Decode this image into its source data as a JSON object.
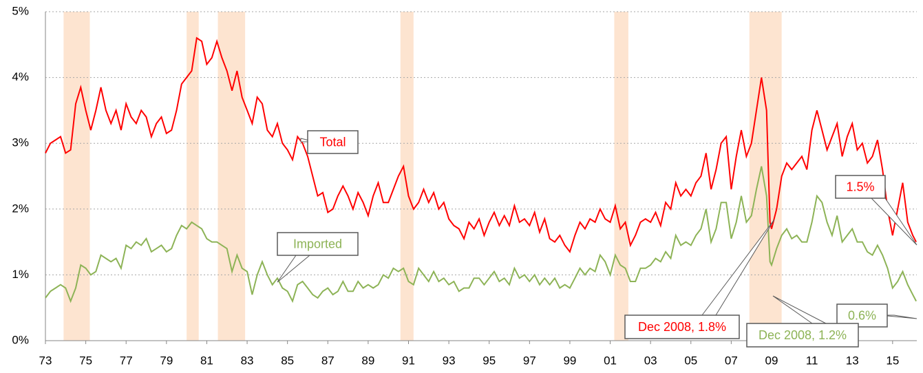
{
  "chart_data": {
    "type": "line",
    "x": [
      1973,
      1973.25,
      1973.5,
      1973.75,
      1974,
      1974.25,
      1974.5,
      1974.75,
      1975,
      1975.25,
      1975.5,
      1975.75,
      1976,
      1976.25,
      1976.5,
      1976.75,
      1977,
      1977.25,
      1977.5,
      1977.75,
      1978,
      1978.25,
      1978.5,
      1978.75,
      1979,
      1979.25,
      1979.5,
      1979.75,
      1980,
      1980.25,
      1980.5,
      1980.75,
      1981,
      1981.25,
      1981.5,
      1981.75,
      1982,
      1982.25,
      1982.5,
      1982.75,
      1983,
      1983.25,
      1983.5,
      1983.75,
      1984,
      1984.25,
      1984.5,
      1984.75,
      1985,
      1985.25,
      1985.5,
      1985.75,
      1986,
      1986.25,
      1986.5,
      1986.75,
      1987,
      1987.25,
      1987.5,
      1987.75,
      1988,
      1988.25,
      1988.5,
      1988.75,
      1989,
      1989.25,
      1989.5,
      1989.75,
      1990,
      1990.25,
      1990.5,
      1990.75,
      1991,
      1991.25,
      1991.5,
      1991.75,
      1992,
      1992.25,
      1992.5,
      1992.75,
      1993,
      1993.25,
      1993.5,
      1993.75,
      1994,
      1994.25,
      1994.5,
      1994.75,
      1995,
      1995.25,
      1995.5,
      1995.75,
      1996,
      1996.25,
      1996.5,
      1996.75,
      1997,
      1997.25,
      1997.5,
      1997.75,
      1998,
      1998.25,
      1998.5,
      1998.75,
      1999,
      1999.25,
      1999.5,
      1999.75,
      2000,
      2000.25,
      2000.5,
      2000.75,
      2001,
      2001.25,
      2001.5,
      2001.75,
      2002,
      2002.25,
      2002.5,
      2002.75,
      2003,
      2003.25,
      2003.5,
      2003.75,
      2004,
      2004.25,
      2004.5,
      2004.75,
      2005,
      2005.25,
      2005.5,
      2005.75,
      2006,
      2006.25,
      2006.5,
      2006.75,
      2007,
      2007.25,
      2007.5,
      2007.75,
      2008,
      2008.25,
      2008.5,
      2008.75,
      2008.92,
      2009,
      2009.25,
      2009.5,
      2009.75,
      2010,
      2010.25,
      2010.5,
      2010.75,
      2011,
      2011.25,
      2011.5,
      2011.75,
      2012,
      2012.25,
      2012.5,
      2012.75,
      2013,
      2013.25,
      2013.5,
      2013.75,
      2014,
      2014.25,
      2014.5,
      2014.75,
      2015,
      2015.25,
      2015.5,
      2015.75,
      2016,
      2016.17
    ],
    "series": [
      {
        "name": "Total",
        "color": "#ff0000",
        "values": [
          2.85,
          3.0,
          3.05,
          3.1,
          2.85,
          2.9,
          3.6,
          3.85,
          3.5,
          3.2,
          3.5,
          3.85,
          3.5,
          3.3,
          3.5,
          3.2,
          3.6,
          3.4,
          3.3,
          3.5,
          3.4,
          3.1,
          3.3,
          3.4,
          3.15,
          3.2,
          3.5,
          3.9,
          4.0,
          4.1,
          4.6,
          4.55,
          4.2,
          4.3,
          4.55,
          4.3,
          4.1,
          3.8,
          4.1,
          3.7,
          3.5,
          3.3,
          3.7,
          3.6,
          3.2,
          3.1,
          3.3,
          3.0,
          2.9,
          2.75,
          3.1,
          3.0,
          2.8,
          2.5,
          2.2,
          2.25,
          1.95,
          2.0,
          2.2,
          2.35,
          2.2,
          2.0,
          2.25,
          2.1,
          1.9,
          2.2,
          2.4,
          2.1,
          2.1,
          2.3,
          2.5,
          2.65,
          2.2,
          2.0,
          2.1,
          2.3,
          2.1,
          2.25,
          2.0,
          2.1,
          1.85,
          1.75,
          1.7,
          1.55,
          1.8,
          1.7,
          1.85,
          1.6,
          1.8,
          1.95,
          1.75,
          1.9,
          1.75,
          2.05,
          1.8,
          1.85,
          1.75,
          1.95,
          1.65,
          1.85,
          1.55,
          1.5,
          1.6,
          1.45,
          1.35,
          1.6,
          1.8,
          1.7,
          1.85,
          1.8,
          2.0,
          1.85,
          1.8,
          2.05,
          1.7,
          1.8,
          1.45,
          1.6,
          1.8,
          1.85,
          1.8,
          1.95,
          1.75,
          2.1,
          2.0,
          2.4,
          2.2,
          2.3,
          2.2,
          2.4,
          2.5,
          2.85,
          2.3,
          2.6,
          3.0,
          3.1,
          2.3,
          2.8,
          3.2,
          2.8,
          3.0,
          3.5,
          4.0,
          3.5,
          1.8,
          1.7,
          2.0,
          2.5,
          2.7,
          2.6,
          2.7,
          2.8,
          2.6,
          3.2,
          3.5,
          3.2,
          2.9,
          3.1,
          3.3,
          2.8,
          3.1,
          3.3,
          2.9,
          3.0,
          2.7,
          2.8,
          3.05,
          2.6,
          2.0,
          1.6,
          2.0,
          2.4,
          1.8,
          1.6,
          1.5
        ]
      },
      {
        "name": "Imported",
        "color": "#8db356",
        "values": [
          0.65,
          0.75,
          0.8,
          0.85,
          0.8,
          0.6,
          0.8,
          1.15,
          1.1,
          1.0,
          1.05,
          1.3,
          1.25,
          1.2,
          1.25,
          1.1,
          1.45,
          1.4,
          1.5,
          1.45,
          1.55,
          1.35,
          1.4,
          1.45,
          1.35,
          1.4,
          1.6,
          1.75,
          1.7,
          1.8,
          1.75,
          1.7,
          1.55,
          1.5,
          1.5,
          1.45,
          1.4,
          1.05,
          1.3,
          1.1,
          1.05,
          0.7,
          1.0,
          1.2,
          1.0,
          0.85,
          0.95,
          0.8,
          0.75,
          0.6,
          0.85,
          0.9,
          0.8,
          0.7,
          0.65,
          0.75,
          0.8,
          0.7,
          0.75,
          0.9,
          0.75,
          0.75,
          0.9,
          0.8,
          0.85,
          0.8,
          0.85,
          1.0,
          0.95,
          1.1,
          1.05,
          1.1,
          0.9,
          0.85,
          1.1,
          1.0,
          0.9,
          1.05,
          0.9,
          0.95,
          0.85,
          0.9,
          0.75,
          0.8,
          0.8,
          0.95,
          0.95,
          0.85,
          0.95,
          1.05,
          0.9,
          0.95,
          0.85,
          1.1,
          0.95,
          1.0,
          0.9,
          1.0,
          0.85,
          0.95,
          0.85,
          0.95,
          0.8,
          0.85,
          0.8,
          0.95,
          1.1,
          1.0,
          1.1,
          1.05,
          1.3,
          1.2,
          1.0,
          1.3,
          1.15,
          1.1,
          0.9,
          0.9,
          1.1,
          1.1,
          1.15,
          1.25,
          1.2,
          1.35,
          1.25,
          1.6,
          1.45,
          1.5,
          1.45,
          1.6,
          1.7,
          2.0,
          1.5,
          1.7,
          2.1,
          2.1,
          1.55,
          1.8,
          2.2,
          1.8,
          1.9,
          2.3,
          2.65,
          2.2,
          1.2,
          1.15,
          1.4,
          1.6,
          1.7,
          1.55,
          1.6,
          1.5,
          1.5,
          1.8,
          2.2,
          2.1,
          1.8,
          1.6,
          1.9,
          1.5,
          1.6,
          1.7,
          1.5,
          1.5,
          1.35,
          1.3,
          1.45,
          1.3,
          1.1,
          0.8,
          0.9,
          1.05,
          0.85,
          0.7,
          0.6
        ]
      }
    ],
    "shaded_periods": [
      [
        1973.9,
        1975.2
      ],
      [
        1980.0,
        1980.6
      ],
      [
        1981.55,
        1982.9
      ],
      [
        1990.6,
        1991.25
      ],
      [
        2001.2,
        2001.9
      ],
      [
        2007.9,
        2009.5
      ]
    ],
    "shaded_color": "#fde4d0",
    "annotations": [
      "Total",
      "Imported",
      "1.5%",
      "0.6%",
      "Dec 2008, 1.8%",
      "Dec 2008, 1.2%"
    ],
    "xlim": [
      1973,
      2016.2
    ],
    "xticks": [
      {
        "value": 1973,
        "label": "73"
      },
      {
        "value": 1975,
        "label": "75"
      },
      {
        "value": 1977,
        "label": "77"
      },
      {
        "value": 1979,
        "label": "79"
      },
      {
        "value": 1981,
        "label": "81"
      },
      {
        "value": 1983,
        "label": "83"
      },
      {
        "value": 1985,
        "label": "85"
      },
      {
        "value": 1987,
        "label": "87"
      },
      {
        "value": 1989,
        "label": "89"
      },
      {
        "value": 1991,
        "label": "91"
      },
      {
        "value": 1993,
        "label": "93"
      },
      {
        "value": 1995,
        "label": "95"
      },
      {
        "value": 1997,
        "label": "97"
      },
      {
        "value": 1999,
        "label": "99"
      },
      {
        "value": 2001,
        "label": "01"
      },
      {
        "value": 2003,
        "label": "03"
      },
      {
        "value": 2005,
        "label": "05"
      },
      {
        "value": 2007,
        "label": "07"
      },
      {
        "value": 2009,
        "label": "09"
      },
      {
        "value": 2011,
        "label": "11"
      },
      {
        "value": 2013,
        "label": "13"
      },
      {
        "value": 2015,
        "label": "15"
      }
    ],
    "ylim": [
      0,
      5
    ],
    "yticks": [
      {
        "value": 0,
        "label": "0%"
      },
      {
        "value": 1,
        "label": "1%"
      },
      {
        "value": 2,
        "label": "2%"
      },
      {
        "value": 3,
        "label": "3%"
      },
      {
        "value": 4,
        "label": "4%"
      },
      {
        "value": 5,
        "label": "5%"
      }
    ],
    "grid": true
  }
}
